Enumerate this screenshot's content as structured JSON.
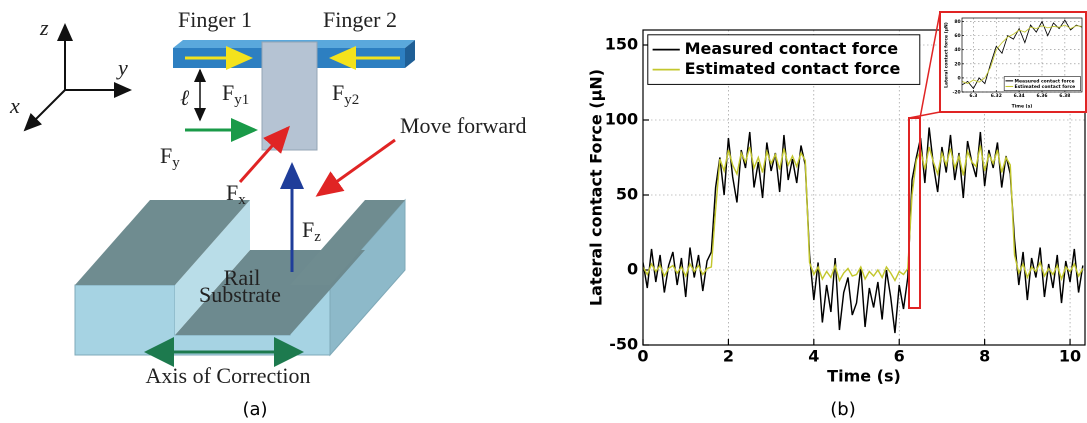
{
  "diagram": {
    "axis_z": "z",
    "axis_y": "y",
    "axis_x": "x",
    "finger1": "Finger 1",
    "finger2": "Finger 2",
    "ell": "ℓ",
    "f_y1": {
      "main": "F",
      "sub": "y1"
    },
    "f_y2": {
      "main": "F",
      "sub": "y2"
    },
    "f_y": {
      "main": "F",
      "sub": "y"
    },
    "f_x": {
      "main": "F",
      "sub": "x"
    },
    "f_z": {
      "main": "F",
      "sub": "z"
    },
    "rail": "Rail",
    "move_forward": "Move forward",
    "substrate": "Substrate",
    "axis_of_correction": "Axis of Correction"
  },
  "captions": {
    "a": "(a)",
    "b": "(b)"
  },
  "chart_data": [
    {
      "type": "line",
      "xlabel": "Time (s)",
      "ylabel": "Lateral contact Force (µN)",
      "xlim": [
        0,
        10.35
      ],
      "ylim": [
        -50,
        160
      ],
      "xticks": [
        0,
        2,
        4,
        6,
        8,
        10
      ],
      "yticks": [
        -50,
        0,
        50,
        100,
        150
      ],
      "grid": true,
      "legend": "upper left",
      "x": [
        0,
        0.1,
        0.2,
        0.3,
        0.4,
        0.5,
        0.6,
        0.7,
        0.8,
        0.9,
        1,
        1.1,
        1.2,
        1.3,
        1.4,
        1.5,
        1.6,
        1.7,
        1.8,
        1.9,
        2,
        2.1,
        2.2,
        2.3,
        2.4,
        2.5,
        2.6,
        2.7,
        2.8,
        2.9,
        3,
        3.1,
        3.2,
        3.3,
        3.4,
        3.5,
        3.6,
        3.7,
        3.8,
        3.9,
        4,
        4.1,
        4.2,
        4.3,
        4.4,
        4.5,
        4.6,
        4.7,
        4.8,
        4.9,
        5,
        5.1,
        5.2,
        5.3,
        5.4,
        5.5,
        5.6,
        5.7,
        5.8,
        5.9,
        6,
        6.1,
        6.2,
        6.3,
        6.4,
        6.5,
        6.6,
        6.7,
        6.8,
        6.9,
        7,
        7.1,
        7.2,
        7.3,
        7.4,
        7.5,
        7.6,
        7.7,
        7.8,
        7.9,
        8,
        8.1,
        8.2,
        8.3,
        8.4,
        8.5,
        8.6,
        8.7,
        8.8,
        8.9,
        9,
        9.1,
        9.2,
        9.3,
        9.4,
        9.5,
        9.6,
        9.7,
        9.8,
        9.9,
        10,
        10.1,
        10.2,
        10.3
      ],
      "series": [
        {
          "name": "Measured contact force",
          "color": "#000000",
          "values": [
            5,
            -12,
            14,
            -8,
            10,
            -15,
            3,
            12,
            -10,
            8,
            -18,
            15,
            -5,
            10,
            -14,
            6,
            12,
            55,
            75,
            50,
            88,
            62,
            45,
            80,
            68,
            92,
            55,
            72,
            48,
            85,
            66,
            78,
            52,
            90,
            60,
            74,
            58,
            83,
            70,
            10,
            -20,
            5,
            -35,
            -10,
            -28,
            8,
            -40,
            -15,
            -5,
            -30,
            -22,
            2,
            -38,
            -12,
            -25,
            -8,
            -33,
            0,
            -18,
            -42,
            -10,
            -26,
            -5,
            60,
            75,
            88,
            58,
            95,
            70,
            52,
            82,
            65,
            90,
            60,
            78,
            48,
            86,
            72,
            62,
            92,
            56,
            80,
            68,
            85,
            55,
            76,
            64,
            20,
            -10,
            12,
            -20,
            8,
            -5,
            15,
            -18,
            4,
            -12,
            10,
            -22,
            6,
            -8,
            14,
            -15,
            3
          ]
        },
        {
          "name": "Estimated contact force",
          "color": "#c3c72e",
          "values": [
            2,
            -3,
            4,
            -1,
            3,
            -4,
            1,
            3,
            -2,
            2,
            -4,
            4,
            -1,
            3,
            -3,
            1,
            2,
            40,
            74,
            66,
            80,
            70,
            64,
            78,
            72,
            82,
            68,
            75,
            65,
            79,
            71,
            77,
            67,
            81,
            70,
            76,
            69,
            78,
            73,
            5,
            -3,
            2,
            -6,
            -1,
            -5,
            3,
            -7,
            -2,
            1,
            -4,
            -3,
            2,
            -6,
            -1,
            -4,
            0,
            -5,
            2,
            -2,
            -7,
            -1,
            -3,
            1,
            50,
            73,
            80,
            67,
            82,
            72,
            64,
            78,
            70,
            81,
            68,
            76,
            63,
            79,
            72,
            69,
            83,
            66,
            77,
            71,
            80,
            65,
            75,
            70,
            10,
            -2,
            4,
            -5,
            2,
            -1,
            5,
            -4,
            1,
            -3,
            3,
            -6,
            2,
            -1,
            4,
            -4,
            1
          ]
        }
      ]
    },
    {
      "type": "line",
      "xlabel": "Time (s)",
      "ylabel": "Lateral contact force (µN)",
      "xlim": [
        6.29,
        6.395
      ],
      "ylim": [
        -20,
        85
      ],
      "xticks": [
        6.3,
        6.32,
        6.34,
        6.36,
        6.38
      ],
      "yticks": [
        -20,
        0,
        20,
        40,
        60,
        80
      ],
      "grid": true,
      "legend": "lower right",
      "x": [
        6.29,
        6.295,
        6.3,
        6.305,
        6.31,
        6.315,
        6.32,
        6.325,
        6.33,
        6.335,
        6.34,
        6.345,
        6.35,
        6.355,
        6.36,
        6.365,
        6.37,
        6.375,
        6.38,
        6.385,
        6.39,
        6.395
      ],
      "series": [
        {
          "name": "Measured contact force",
          "color": "#000000",
          "values": [
            -10,
            -5,
            -15,
            0,
            -8,
            20,
            45,
            35,
            60,
            55,
            70,
            50,
            75,
            65,
            80,
            60,
            78,
            70,
            82,
            68,
            75,
            72
          ]
        },
        {
          "name": "Estimated contact force",
          "color": "#c3c72e",
          "values": [
            -5,
            -8,
            -3,
            -6,
            0,
            15,
            40,
            50,
            58,
            62,
            68,
            65,
            72,
            70,
            74,
            71,
            73,
            72,
            75,
            70,
            74,
            73
          ]
        }
      ]
    }
  ]
}
